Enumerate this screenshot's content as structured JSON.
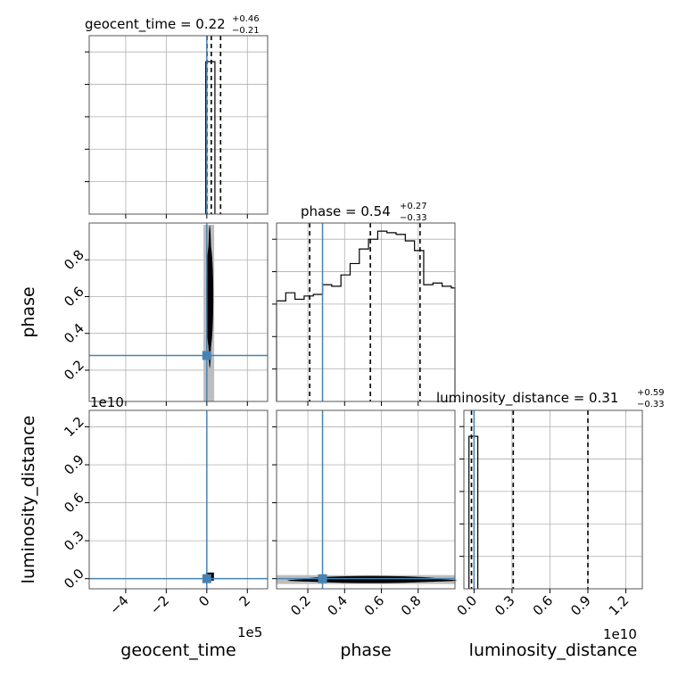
{
  "chart_data": {
    "type": "corner",
    "parameters": [
      "geocent_time",
      "phase",
      "luminosity_distance"
    ],
    "titles": [
      {
        "param": "geocent_time",
        "label": "geocent_time = 0.22",
        "plus": "+0.46",
        "minus": "−0.21"
      },
      {
        "param": "phase",
        "label": "phase = 0.54",
        "plus": "+0.27",
        "minus": "−0.33"
      },
      {
        "param": "luminosity_distance",
        "label": "luminosity_distance = 0.31",
        "plus": "+0.59",
        "minus": "−0.33"
      }
    ],
    "axis_labels": {
      "x": [
        "geocent_time",
        "phase",
        "luminosity_distance"
      ],
      "y": [
        "phase",
        "luminosity_distance"
      ]
    },
    "offsets": {
      "geocent_time_x": "1e5",
      "luminosity_distance_x": "1e10",
      "luminosity_distance_y": "1e10"
    },
    "axes": {
      "geocent_time": {
        "lim": [
          -5.8,
          3
        ],
        "ticks": [
          -4,
          -2,
          0,
          2
        ],
        "tick_labels": [
          "−4",
          "−2",
          "0",
          "2"
        ]
      },
      "phase": {
        "lim": [
          0.03,
          1.0
        ],
        "ticks": [
          0.2,
          0.4,
          0.6,
          0.8
        ],
        "tick_labels": [
          "0.2",
          "0.4",
          "0.6",
          "0.8"
        ]
      },
      "luminosity_distance": {
        "lim": [
          -0.08,
          1.33
        ],
        "ticks": [
          0.0,
          0.3,
          0.6,
          0.9,
          1.2
        ],
        "tick_labels": [
          "0.0",
          "0.3",
          "0.6",
          "0.9",
          "1.2"
        ]
      }
    },
    "truths": {
      "geocent_time": 0.0,
      "phase": 0.28,
      "luminosity_distance": 0.0
    },
    "quantiles": {
      "geocent_time": [
        0.01,
        0.22,
        0.68
      ],
      "phase": [
        0.21,
        0.54,
        0.81
      ],
      "luminosity_distance": [
        -0.02,
        0.31,
        0.9
      ]
    },
    "hist_geocent_time": {
      "edges": [
        -0.05,
        0.4
      ],
      "heights": [
        0.94
      ]
    },
    "hist_phase": {
      "edges": [
        0.03,
        0.08,
        0.13,
        0.18,
        0.23,
        0.28,
        0.33,
        0.38,
        0.43,
        0.48,
        0.53,
        0.58,
        0.63,
        0.68,
        0.73,
        0.78,
        0.83,
        0.88,
        0.93,
        0.98,
        1.0
      ],
      "heights": [
        0.62,
        0.67,
        0.63,
        0.65,
        0.66,
        0.72,
        0.71,
        0.78,
        0.85,
        0.94,
        1.0,
        1.05,
        1.04,
        1.03,
        0.99,
        0.93,
        0.72,
        0.73,
        0.71,
        0.7
      ]
    },
    "hist_luminosity_distance": {
      "edges": [
        -0.04,
        0.03
      ],
      "heights": [
        0.94
      ]
    },
    "grid": true
  }
}
